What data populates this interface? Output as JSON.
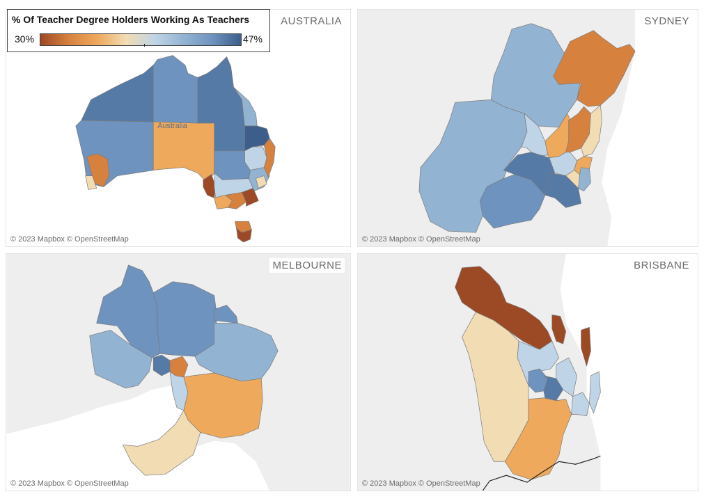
{
  "legend": {
    "title": "% Of Teacher Degree Holders Working As Teachers",
    "min_label": "30%",
    "max_label": "47%",
    "gradient_colors": [
      "#9c4a25",
      "#d7813f",
      "#eea95c",
      "#f2dcb4",
      "#bfd4e6",
      "#93b3d2",
      "#6e93be",
      "#3d5e8a"
    ]
  },
  "attribution": "© 2023 Mapbox © OpenStreetMap",
  "panels": {
    "australia": {
      "label": "AUSTRALIA",
      "place_label": "Australia"
    },
    "sydney": {
      "label": "SYDNEY"
    },
    "melbourne": {
      "label": "MELBOURNE"
    },
    "brisbane": {
      "label": "BRISBANE"
    }
  },
  "colors": {
    "basemap": "#eeeeee",
    "water": "#ffffff",
    "dark_brown": "#9c4a25",
    "orange": "#d7813f",
    "light_orange": "#eea95c",
    "tan": "#f2dcb4",
    "pale_blue": "#bfd4e6",
    "light_blue": "#93b3d2",
    "mid_blue": "#6e93be",
    "dark_blue": "#557aa5",
    "darkest_blue": "#3d5e8a"
  }
}
